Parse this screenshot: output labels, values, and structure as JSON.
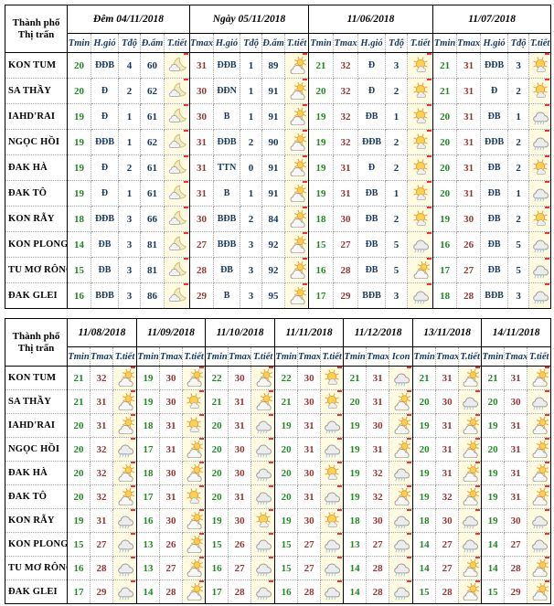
{
  "palette": {
    "tmin_color": "#218A21",
    "tmax_color": "#963634",
    "wind_color": "#17375E",
    "icon_bg": "#FFFBE1",
    "mark_color": "#FF2A2A"
  },
  "icon_names": {
    "night": "moon-cloud-icon",
    "suncloud": "sun-behind-cloud-icon",
    "sunny": "sun-small-cloud-icon",
    "rain": "rain-cloud-icon"
  },
  "top_table": {
    "corner": [
      "Thành phố",
      "Thị trấn"
    ],
    "blocks": [
      {
        "label": "Đêm 04/11/2018",
        "cols": [
          "Tmin",
          "H.gió",
          "Tđộ",
          "Đ.ẩm",
          "T.tiết"
        ],
        "kinds": [
          "tmin",
          "wind",
          "num",
          "num",
          "icon"
        ]
      },
      {
        "label": "Ngày 05/11/2018",
        "cols": [
          "Tmax",
          "H.gió",
          "Tđộ",
          "Đ.ẩm",
          "T.tiết"
        ],
        "kinds": [
          "tmax",
          "wind",
          "num",
          "num",
          "icon"
        ]
      },
      {
        "label": "11/06/2018",
        "cols": [
          "Tmin",
          "Tmax",
          "H.gió",
          "Tđộ",
          "T.tiết"
        ],
        "kinds": [
          "tmin",
          "tmax",
          "wind",
          "num",
          "icon"
        ]
      },
      {
        "label": "11/07/2018",
        "cols": [
          "Tmin",
          "Tmax",
          "H.gió",
          "Tđộ",
          "T.tiết"
        ],
        "kinds": [
          "tmin",
          "tmax",
          "wind",
          "num",
          "icon"
        ]
      }
    ],
    "rows": [
      {
        "city": "KON TUM",
        "cells": [
          "20",
          "ĐĐB",
          "4",
          "60",
          "night",
          "31",
          "ĐĐB",
          "1",
          "89",
          "suncloud",
          "21",
          "32",
          "Đ",
          "3",
          "sunny",
          "21",
          "31",
          "ĐĐB",
          "3",
          "sunny"
        ]
      },
      {
        "city": "SA THẦY",
        "cells": [
          "20",
          "Đ",
          "2",
          "62",
          "night",
          "30",
          "ĐĐN",
          "1",
          "91",
          "suncloud",
          "20",
          "32",
          "Đ",
          "2",
          "sunny",
          "21",
          "31",
          "Đ",
          "2",
          "sunny"
        ]
      },
      {
        "city": "IAHD'RAI",
        "cells": [
          "19",
          "Đ",
          "1",
          "61",
          "night",
          "30",
          "B",
          "1",
          "91",
          "suncloud",
          "19",
          "32",
          "ĐB",
          "1",
          "sunny",
          "20",
          "31",
          "ĐB",
          "1",
          "rain"
        ]
      },
      {
        "city": "NGỌC HỒI",
        "cells": [
          "19",
          "ĐĐB",
          "1",
          "62",
          "night",
          "31",
          "ĐĐB",
          "2",
          "90",
          "suncloud",
          "19",
          "32",
          "ĐĐB",
          "2",
          "sunny",
          "20",
          "31",
          "ĐĐB",
          "2",
          "rain"
        ]
      },
      {
        "city": "ĐAK HÀ",
        "cells": [
          "19",
          "Đ",
          "2",
          "61",
          "night",
          "31",
          "TTN",
          "0",
          "91",
          "suncloud",
          "19",
          "31",
          "Đ",
          "2",
          "sunny",
          "20",
          "31",
          "ĐB",
          "2",
          "sunny"
        ]
      },
      {
        "city": "ĐAK TÔ",
        "cells": [
          "19",
          "Đ",
          "1",
          "61",
          "night",
          "31",
          "B",
          "1",
          "91",
          "suncloud",
          "19",
          "31",
          "ĐB",
          "1",
          "sunny",
          "20",
          "31",
          "ĐB",
          "1",
          "rain"
        ]
      },
      {
        "city": "KON RẪY",
        "cells": [
          "18",
          "ĐĐB",
          "3",
          "66",
          "night",
          "30",
          "BĐB",
          "2",
          "84",
          "suncloud",
          "18",
          "30",
          "ĐB",
          "2",
          "sunny",
          "19",
          "30",
          "ĐB",
          "2",
          "sunny"
        ]
      },
      {
        "city": "KON PLONG",
        "cells": [
          "14",
          "ĐB",
          "3",
          "81",
          "night",
          "27",
          "BĐB",
          "3",
          "92",
          "suncloud",
          "15",
          "27",
          "ĐB",
          "5",
          "rain",
          "16",
          "26",
          "ĐB",
          "5",
          "rain"
        ]
      },
      {
        "city": "TU MƠ RÔNG",
        "cells": [
          "15",
          "ĐB",
          "3",
          "81",
          "night",
          "28",
          "ĐB",
          "3",
          "92",
          "suncloud",
          "16",
          "28",
          "ĐB",
          "5",
          "suncloud",
          "17",
          "27",
          "ĐB",
          "5",
          "rain"
        ]
      },
      {
        "city": "ĐAK GLEI",
        "cells": [
          "16",
          "BĐB",
          "3",
          "86",
          "night",
          "29",
          "B",
          "3",
          "95",
          "suncloud",
          "17",
          "29",
          "BĐB",
          "3",
          "rain",
          "18",
          "28",
          "BĐB",
          "3",
          "rain"
        ]
      }
    ]
  },
  "bottom_table": {
    "corner": [
      "Thành phố",
      "Thị trấn"
    ],
    "blocks": [
      {
        "label": "11/08/2018",
        "cols": [
          "Tmin",
          "Tmax",
          "T.tiết"
        ],
        "kinds": [
          "tmin",
          "tmax",
          "icon"
        ]
      },
      {
        "label": "11/09/2018",
        "cols": [
          "Tmin",
          "Tmax",
          "T.tiết"
        ],
        "kinds": [
          "tmin",
          "tmax",
          "icon"
        ]
      },
      {
        "label": "11/10/2018",
        "cols": [
          "Tmin",
          "Tmax",
          "T.tiết"
        ],
        "kinds": [
          "tmin",
          "tmax",
          "icon"
        ]
      },
      {
        "label": "11/11/2018",
        "cols": [
          "Tmin",
          "Tmax",
          "T.tiết"
        ],
        "kinds": [
          "tmin",
          "tmax",
          "icon"
        ]
      },
      {
        "label": "11/12/2018",
        "cols": [
          "Tmin",
          "Tmax",
          "Icon"
        ],
        "kinds": [
          "tmin",
          "tmax",
          "icon"
        ]
      },
      {
        "label": "13/11/2018",
        "cols": [
          "Tmin",
          "Tmax",
          "T.tiết"
        ],
        "kinds": [
          "tmin",
          "tmax",
          "icon"
        ]
      },
      {
        "label": "14/11/2018",
        "cols": [
          "Tmin",
          "Tmax",
          "T.tiết"
        ],
        "kinds": [
          "tmin",
          "tmax",
          "icon"
        ]
      }
    ],
    "rows": [
      {
        "city": "KON TUM",
        "cells": [
          "21",
          "32",
          "suncloud",
          "19",
          "30",
          "suncloud",
          "22",
          "30",
          "suncloud",
          "22",
          "30",
          "sunny",
          "21",
          "31",
          "rain",
          "21",
          "31",
          "suncloud",
          "21",
          "31",
          "suncloud"
        ]
      },
      {
        "city": "SA THẦY",
        "cells": [
          "21",
          "31",
          "suncloud",
          "19",
          "30",
          "sunny",
          "21",
          "31",
          "suncloud",
          "21",
          "30",
          "sunny",
          "20",
          "31",
          "suncloud",
          "20",
          "30",
          "rain",
          "20",
          "30",
          "rain"
        ]
      },
      {
        "city": "IAHD'RAI",
        "cells": [
          "20",
          "31",
          "suncloud",
          "18",
          "31",
          "sunny",
          "20",
          "31",
          "rain",
          "19",
          "31",
          "rain",
          "19",
          "30",
          "suncloud",
          "19",
          "31",
          "suncloud",
          "19",
          "31",
          "suncloud"
        ]
      },
      {
        "city": "NGỌC HỒI",
        "cells": [
          "20",
          "32",
          "rain",
          "17",
          "31",
          "suncloud",
          "20",
          "30",
          "rain",
          "20",
          "31",
          "rain",
          "19",
          "31",
          "suncloud",
          "20",
          "31",
          "suncloud",
          "20",
          "31",
          "suncloud"
        ]
      },
      {
        "city": "ĐAK HÀ",
        "cells": [
          "20",
          "32",
          "suncloud",
          "18",
          "30",
          "suncloud",
          "20",
          "30",
          "rain",
          "20",
          "30",
          "sunny",
          "19",
          "32",
          "rain",
          "19",
          "31",
          "suncloud",
          "19",
          "31",
          "suncloud"
        ]
      },
      {
        "city": "ĐAK TÔ",
        "cells": [
          "20",
          "32",
          "suncloud",
          "17",
          "31",
          "sunny",
          "20",
          "31",
          "rain",
          "20",
          "31",
          "rain",
          "19",
          "32",
          "suncloud",
          "19",
          "32",
          "suncloud",
          "19",
          "31",
          "suncloud"
        ]
      },
      {
        "city": "KON RẪY",
        "cells": [
          "19",
          "31",
          "rain",
          "16",
          "30",
          "suncloud",
          "19",
          "30",
          "sunny",
          "19",
          "30",
          "sunny",
          "18",
          "30",
          "rain",
          "18",
          "30",
          "rain",
          "19",
          "30",
          "rain"
        ]
      },
      {
        "city": "KON PLONG",
        "cells": [
          "15",
          "27",
          "rain",
          "13",
          "26",
          "suncloud",
          "15",
          "26",
          "rain",
          "15",
          "27",
          "rain",
          "13",
          "27",
          "rain",
          "14",
          "27",
          "rain",
          "14",
          "27",
          "rain"
        ]
      },
      {
        "city": "TU MƠ RÔNG",
        "cells": [
          "16",
          "28",
          "rain",
          "13",
          "27",
          "suncloud",
          "16",
          "27",
          "rain",
          "15",
          "27",
          "rain",
          "14",
          "28",
          "rain",
          "14",
          "27",
          "suncloud",
          "14",
          "28",
          "suncloud"
        ]
      },
      {
        "city": "ĐAK GLEI",
        "cells": [
          "17",
          "29",
          "rain",
          "14",
          "28",
          "suncloud",
          "17",
          "28",
          "rain",
          "16",
          "28",
          "rain",
          "14",
          "28",
          "rain",
          "15",
          "28",
          "suncloud",
          "15",
          "29",
          "suncloud"
        ]
      }
    ]
  }
}
